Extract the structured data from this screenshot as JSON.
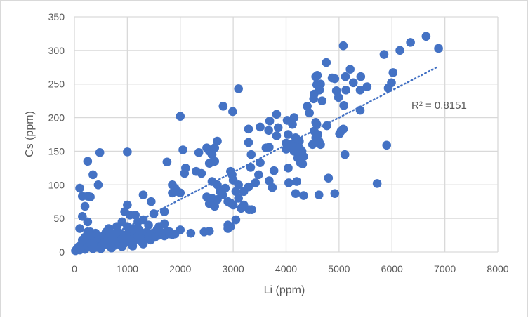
{
  "chart_data": {
    "type": "scatter",
    "title": "",
    "xlabel": "Li (ppm)",
    "ylabel": "Cs (ppm)",
    "xlim": [
      0,
      8000
    ],
    "ylim": [
      0,
      350
    ],
    "xticks": [
      "0",
      "1000",
      "2000",
      "3000",
      "4000",
      "5000",
      "6000",
      "7000",
      "8000"
    ],
    "yticks": [
      "0",
      "50",
      "100",
      "150",
      "200",
      "250",
      "300",
      "350"
    ],
    "grid": true,
    "legend": "none",
    "marker_color": "#4472C4",
    "trendline": {
      "type": "linear",
      "style": "dotted",
      "slope": 0.0406,
      "intercept": -3,
      "x_range": [
        0,
        6880
      ],
      "label": "R² = 0.8151"
    },
    "points": [
      [
        5080,
        307
      ],
      [
        5850,
        294
      ],
      [
        6150,
        300
      ],
      [
        6350,
        312
      ],
      [
        6645,
        321
      ],
      [
        6880,
        303
      ],
      [
        4760,
        282
      ],
      [
        6020,
        267
      ],
      [
        5990,
        252
      ],
      [
        5930,
        244
      ],
      [
        5210,
        272
      ],
      [
        5410,
        261
      ],
      [
        5120,
        261
      ],
      [
        4560,
        261
      ],
      [
        4590,
        263
      ],
      [
        4870,
        259
      ],
      [
        4920,
        258
      ],
      [
        5270,
        252
      ],
      [
        5530,
        246
      ],
      [
        5400,
        241
      ],
      [
        5130,
        241
      ],
      [
        4950,
        240
      ],
      [
        4630,
        241
      ],
      [
        4650,
        250
      ],
      [
        4580,
        249
      ],
      [
        4530,
        235
      ],
      [
        4520,
        228
      ],
      [
        4680,
        225
      ],
      [
        4990,
        230
      ],
      [
        5090,
        218
      ],
      [
        5400,
        211
      ],
      [
        4400,
        217
      ],
      [
        4440,
        207
      ],
      [
        3820,
        205
      ],
      [
        3690,
        195
      ],
      [
        3850,
        185
      ],
      [
        3510,
        186
      ],
      [
        3290,
        183
      ],
      [
        3670,
        181
      ],
      [
        4020,
        196
      ],
      [
        4150,
        200
      ],
      [
        4120,
        190
      ],
      [
        3820,
        173
      ],
      [
        4040,
        175
      ],
      [
        4530,
        180
      ],
      [
        4560,
        170
      ],
      [
        4600,
        175
      ],
      [
        4620,
        165
      ],
      [
        4500,
        160
      ],
      [
        4650,
        160
      ],
      [
        4580,
        190
      ],
      [
        4560,
        193
      ],
      [
        4770,
        188
      ],
      [
        5010,
        176
      ],
      [
        5080,
        183
      ],
      [
        5040,
        180
      ],
      [
        3290,
        163
      ],
      [
        3340,
        145
      ],
      [
        3620,
        155
      ],
      [
        3680,
        156
      ],
      [
        4000,
        162
      ],
      [
        4000,
        153
      ],
      [
        4100,
        160
      ],
      [
        4150,
        150
      ],
      [
        4200,
        158
      ],
      [
        4250,
        165
      ],
      [
        4300,
        150
      ],
      [
        4220,
        140
      ],
      [
        4270,
        133
      ],
      [
        4330,
        142
      ],
      [
        4180,
        170
      ],
      [
        4250,
        155
      ],
      [
        4310,
        131
      ],
      [
        4040,
        125
      ],
      [
        3510,
        133
      ],
      [
        3330,
        126
      ],
      [
        3770,
        121
      ],
      [
        3480,
        115
      ],
      [
        3420,
        103
      ],
      [
        3680,
        106
      ],
      [
        3740,
        96
      ],
      [
        3290,
        97
      ],
      [
        4050,
        103
      ],
      [
        4200,
        105
      ],
      [
        4800,
        110
      ],
      [
        5110,
        145
      ],
      [
        5900,
        159
      ],
      [
        5720,
        102
      ],
      [
        4180,
        87
      ],
      [
        4330,
        84
      ],
      [
        4620,
        85
      ],
      [
        4920,
        87
      ],
      [
        3100,
        243
      ],
      [
        2810,
        217
      ],
      [
        2990,
        209
      ],
      [
        2000,
        202
      ],
      [
        2050,
        152
      ],
      [
        2700,
        165
      ],
      [
        2650,
        155
      ],
      [
        2550,
        150
      ],
      [
        2500,
        155
      ],
      [
        2600,
        145
      ],
      [
        2350,
        148
      ],
      [
        2100,
        125
      ],
      [
        2080,
        117
      ],
      [
        2300,
        120
      ],
      [
        2400,
        117
      ],
      [
        2550,
        132
      ],
      [
        2650,
        135
      ],
      [
        2950,
        120
      ],
      [
        2980,
        115
      ],
      [
        3000,
        107
      ],
      [
        3100,
        100
      ],
      [
        3050,
        90
      ],
      [
        3200,
        90
      ],
      [
        2500,
        82
      ],
      [
        2600,
        80
      ],
      [
        2700,
        78
      ],
      [
        2750,
        90
      ],
      [
        2800,
        85
      ],
      [
        2900,
        75
      ],
      [
        2950,
        73
      ],
      [
        3000,
        70
      ],
      [
        3100,
        80
      ],
      [
        3200,
        70
      ],
      [
        3300,
        63
      ],
      [
        3350,
        63
      ],
      [
        3150,
        65
      ],
      [
        2550,
        72
      ],
      [
        2650,
        68
      ],
      [
        2850,
        95
      ],
      [
        2700,
        100
      ],
      [
        2600,
        105
      ],
      [
        2900,
        40
      ],
      [
        2950,
        38
      ],
      [
        3050,
        48
      ],
      [
        2900,
        35
      ],
      [
        2550,
        31
      ],
      [
        2450,
        30
      ],
      [
        2200,
        28
      ],
      [
        1800,
        30
      ],
      [
        1900,
        27
      ],
      [
        2000,
        33
      ],
      [
        1750,
        134
      ],
      [
        1850,
        100
      ],
      [
        1900,
        95
      ],
      [
        1950,
        90
      ],
      [
        2000,
        88
      ],
      [
        1850,
        88
      ],
      [
        1700,
        60
      ],
      [
        1450,
        75
      ],
      [
        1500,
        57
      ],
      [
        1300,
        85
      ],
      [
        1200,
        45
      ],
      [
        1150,
        55
      ],
      [
        1000,
        70
      ],
      [
        1050,
        55
      ],
      [
        950,
        60
      ],
      [
        1000,
        149
      ],
      [
        350,
        115
      ],
      [
        450,
        100
      ],
      [
        480,
        148
      ],
      [
        250,
        135
      ],
      [
        100,
        95
      ],
      [
        150,
        83
      ],
      [
        250,
        83
      ],
      [
        300,
        82
      ],
      [
        200,
        68
      ],
      [
        150,
        53
      ],
      [
        250,
        45
      ],
      [
        100,
        35
      ],
      [
        300,
        30
      ],
      [
        1700,
        42
      ],
      [
        1600,
        38
      ],
      [
        1400,
        40
      ],
      [
        1300,
        48
      ],
      [
        1200,
        35
      ],
      [
        900,
        45
      ],
      [
        800,
        38
      ],
      [
        600,
        30
      ],
      [
        20,
        2
      ],
      [
        50,
        5
      ],
      [
        80,
        8
      ],
      [
        100,
        3
      ],
      [
        120,
        10
      ],
      [
        150,
        6
      ],
      [
        180,
        12
      ],
      [
        200,
        4
      ],
      [
        230,
        15
      ],
      [
        260,
        8
      ],
      [
        300,
        18
      ],
      [
        330,
        10
      ],
      [
        350,
        5
      ],
      [
        380,
        20
      ],
      [
        400,
        12
      ],
      [
        430,
        7
      ],
      [
        460,
        22
      ],
      [
        500,
        15
      ],
      [
        520,
        9
      ],
      [
        560,
        25
      ],
      [
        580,
        17
      ],
      [
        600,
        11
      ],
      [
        640,
        20
      ],
      [
        680,
        14
      ],
      [
        700,
        26
      ],
      [
        730,
        18
      ],
      [
        760,
        10
      ],
      [
        800,
        22
      ],
      [
        830,
        15
      ],
      [
        860,
        28
      ],
      [
        900,
        19
      ],
      [
        930,
        12
      ],
      [
        960,
        25
      ],
      [
        1000,
        17
      ],
      [
        1030,
        30
      ],
      [
        1060,
        22
      ],
      [
        1100,
        14
      ],
      [
        1130,
        27
      ],
      [
        1160,
        19
      ],
      [
        1200,
        24
      ],
      [
        1230,
        32
      ],
      [
        1260,
        16
      ],
      [
        1300,
        26
      ],
      [
        1330,
        20
      ],
      [
        1370,
        30
      ],
      [
        1400,
        23
      ],
      [
        1440,
        18
      ],
      [
        1480,
        28
      ],
      [
        1520,
        22
      ],
      [
        1560,
        33
      ],
      [
        1600,
        25
      ],
      [
        1650,
        29
      ],
      [
        1700,
        24
      ],
      [
        1750,
        31
      ],
      [
        1800,
        27
      ],
      [
        1850,
        26
      ],
      [
        400,
        28
      ],
      [
        300,
        25
      ],
      [
        200,
        22
      ],
      [
        150,
        18
      ],
      [
        500,
        5
      ],
      [
        700,
        6
      ],
      [
        900,
        8
      ],
      [
        1100,
        9
      ],
      [
        1300,
        12
      ],
      [
        250,
        30
      ],
      [
        650,
        35
      ],
      [
        1000,
        38
      ],
      [
        1100,
        35
      ],
      [
        800,
        30
      ]
    ]
  }
}
